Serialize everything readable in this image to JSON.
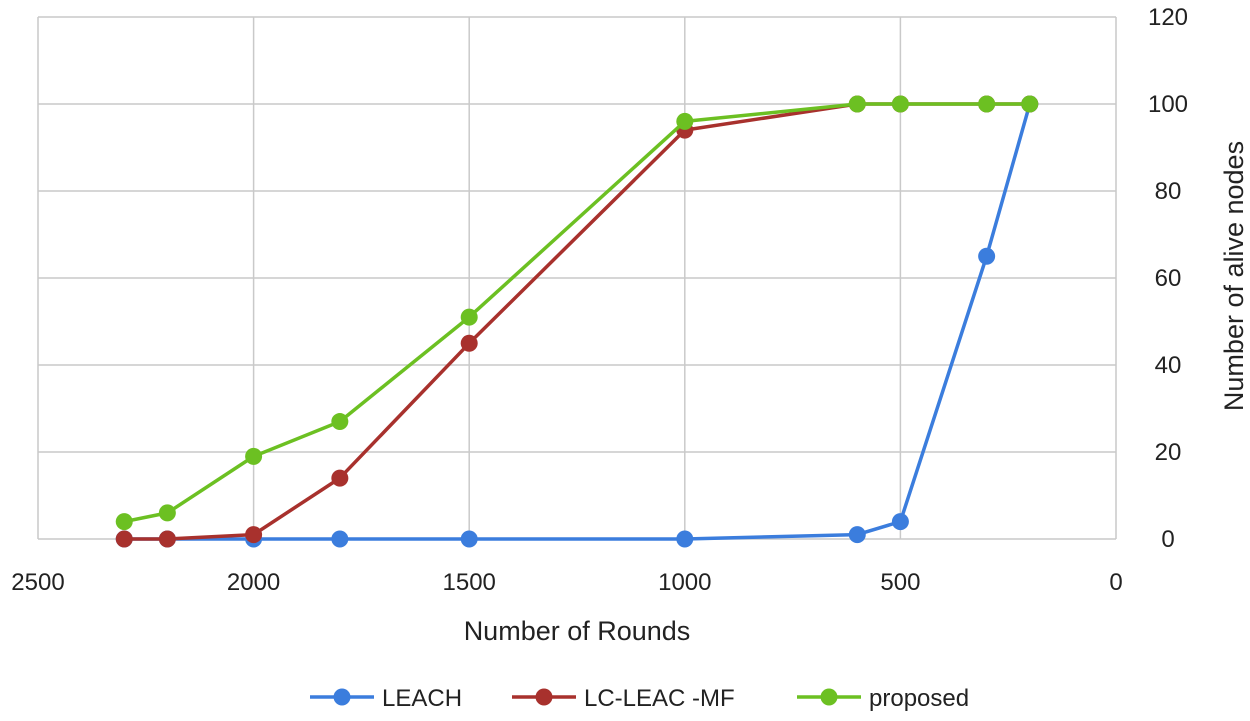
{
  "chart_data": {
    "type": "line",
    "xlabel": "Number of Rounds",
    "ylabel": "Number of alive nodes",
    "xlim": [
      2500,
      0
    ],
    "ylim": [
      0,
      120
    ],
    "x_reversed": true,
    "y_axis_side": "right",
    "x_ticks": [
      2500,
      2000,
      1500,
      1000,
      500,
      0
    ],
    "y_ticks": [
      0,
      20,
      40,
      60,
      80,
      100,
      120
    ],
    "grid": true,
    "legend_position": "bottom",
    "series": [
      {
        "name": "LEACH",
        "color": "#3B7DDD",
        "points": [
          [
            2300,
            0
          ],
          [
            2200,
            0
          ],
          [
            2000,
            0
          ],
          [
            1800,
            0
          ],
          [
            1500,
            0
          ],
          [
            1000,
            0
          ],
          [
            600,
            1
          ],
          [
            500,
            4
          ],
          [
            300,
            65
          ],
          [
            200,
            100
          ]
        ]
      },
      {
        "name": "LC-LEAC -MF",
        "color": "#A8312D",
        "points": [
          [
            2300,
            0
          ],
          [
            2200,
            0
          ],
          [
            2000,
            1
          ],
          [
            1800,
            14
          ],
          [
            1500,
            45
          ],
          [
            1000,
            94
          ],
          [
            600,
            100
          ],
          [
            500,
            100
          ],
          [
            300,
            100
          ],
          [
            200,
            100
          ]
        ]
      },
      {
        "name": "proposed",
        "color": "#6CC022",
        "points": [
          [
            2300,
            4
          ],
          [
            2200,
            6
          ],
          [
            2000,
            19
          ],
          [
            1800,
            27
          ],
          [
            1500,
            51
          ],
          [
            1000,
            96
          ],
          [
            600,
            100
          ],
          [
            500,
            100
          ],
          [
            300,
            100
          ],
          [
            200,
            100
          ]
        ]
      }
    ]
  }
}
